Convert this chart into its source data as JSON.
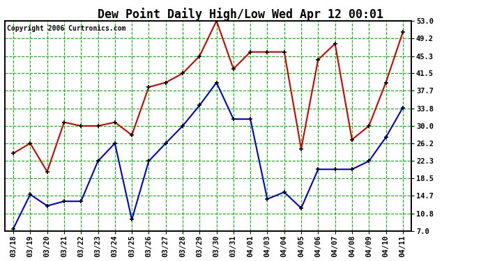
{
  "title": "Dew Point Daily High/Low Wed Apr 12 00:01",
  "copyright": "Copyright 2006 Curtronics.com",
  "x_labels": [
    "03/18",
    "03/19",
    "03/20",
    "03/21",
    "03/22",
    "03/23",
    "03/24",
    "03/25",
    "03/26",
    "03/27",
    "03/28",
    "03/29",
    "03/30",
    "03/31",
    "04/01",
    "04/03",
    "04/04",
    "04/05",
    "04/06",
    "04/07",
    "04/08",
    "04/09",
    "04/10",
    "04/11"
  ],
  "high_values": [
    24.0,
    26.2,
    20.0,
    30.8,
    30.0,
    30.0,
    30.8,
    28.0,
    38.5,
    39.5,
    41.5,
    45.3,
    53.0,
    42.5,
    46.2,
    46.2,
    46.2,
    25.0,
    44.5,
    48.0,
    27.0,
    30.0,
    39.5,
    50.5
  ],
  "low_values": [
    7.5,
    15.0,
    12.5,
    13.5,
    13.5,
    22.3,
    26.2,
    9.5,
    22.3,
    26.2,
    30.0,
    34.5,
    39.5,
    31.5,
    31.5,
    14.0,
    15.5,
    12.0,
    20.5,
    20.5,
    20.5,
    22.3,
    27.5,
    34.0
  ],
  "high_color": "#cc0000",
  "low_color": "#0000cc",
  "marker_color": "#000000",
  "background_color": "#ffffff",
  "plot_bg_color": "#ffffff",
  "grid_color": "#00bb00",
  "y_ticks": [
    7.0,
    10.8,
    14.7,
    18.5,
    22.3,
    26.2,
    30.0,
    33.8,
    37.7,
    41.5,
    45.3,
    49.2,
    53.0
  ],
  "ylim": [
    7.0,
    53.0
  ],
  "title_fontsize": 12,
  "tick_fontsize": 7.5,
  "copyright_fontsize": 7
}
